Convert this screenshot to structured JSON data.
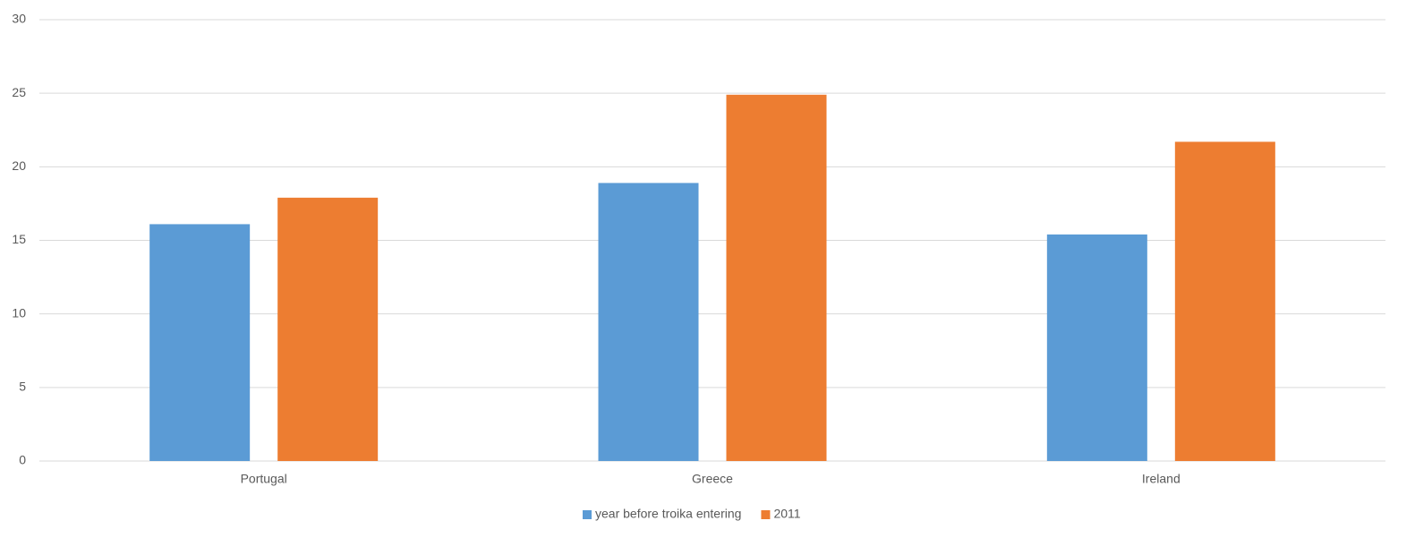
{
  "chart_data": {
    "type": "bar",
    "categories": [
      "Portugal",
      "Greece",
      "Ireland"
    ],
    "series": [
      {
        "name": "year before troika entering",
        "color": "#5b9bd5",
        "values": [
          16.1,
          18.9,
          15.4
        ]
      },
      {
        "name": "2011",
        "color": "#ed7d31",
        "values": [
          17.9,
          24.9,
          21.7
        ]
      }
    ],
    "ylim": [
      0,
      30
    ],
    "yticks": [
      0,
      5,
      10,
      15,
      20,
      25,
      30
    ],
    "grid": true,
    "legend": "bottom"
  }
}
